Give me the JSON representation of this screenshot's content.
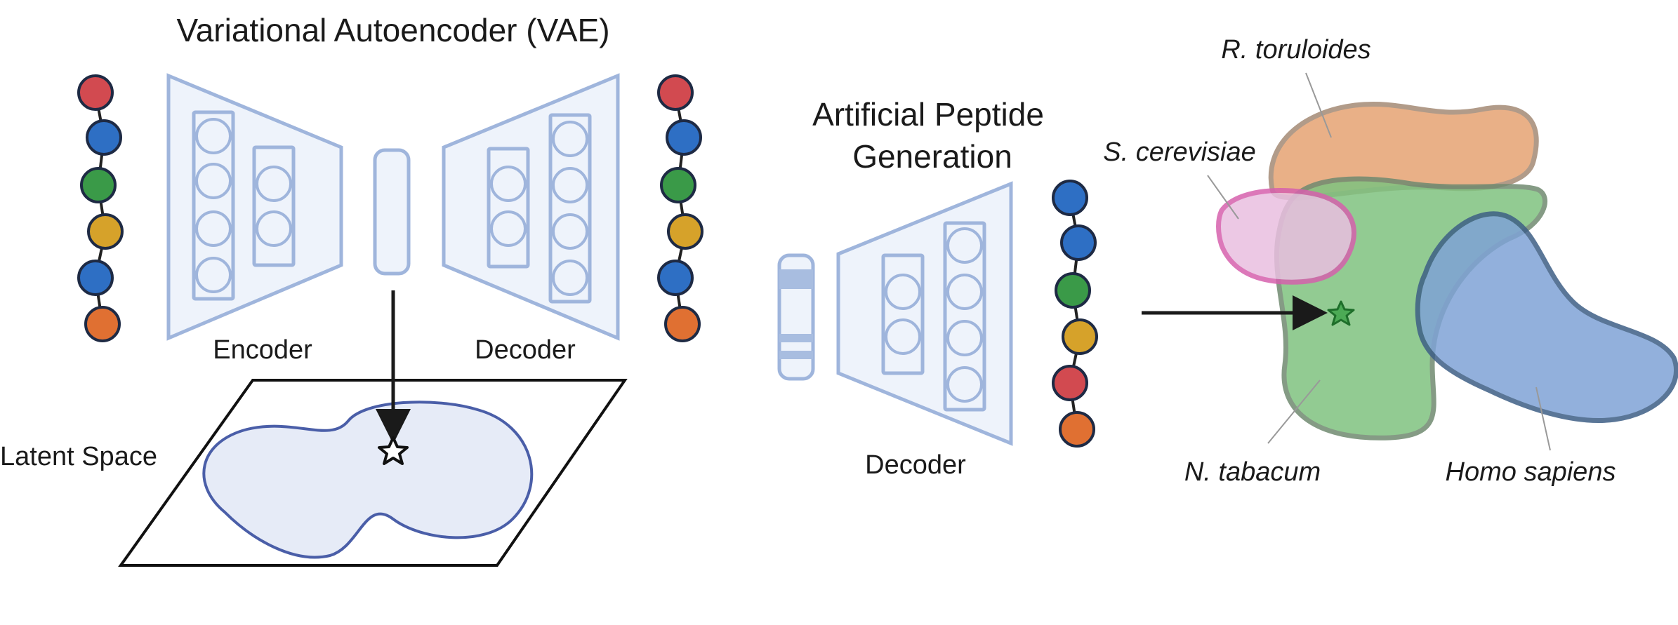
{
  "vae": {
    "title": "Variational Autoencoder (VAE)",
    "encoder_label": "Encoder",
    "decoder_label": "Decoder",
    "latent_label": "Latent Space"
  },
  "generation": {
    "title_line1": "Artificial Peptide",
    "title_line2": "Generation",
    "decoder_label": "Decoder"
  },
  "species": {
    "r_toruloides": "R. toruloides",
    "s_cerevisiae": "S. cerevisiae",
    "n_tabacum": "N. tabacum",
    "homo_sapiens": "Homo sapiens"
  },
  "colors": {
    "network_stroke": "#9fb5dc",
    "network_fill": "#eef3fb",
    "latent_fill": "#e6ebf7",
    "latent_stroke": "#4a5ea8",
    "bead_red": "#d24a50",
    "bead_blue": "#2e6fc4",
    "bead_green": "#3a9a48",
    "bead_yellow": "#d6a22a",
    "bead_orange": "#e07032",
    "r_toruloides": "#e6a373",
    "s_cerevisiae": "#e9bfe0",
    "n_tabacum": "#7fc27f",
    "homo_sapiens": "#7fa3d6"
  },
  "peptide_left": [
    "bead_red",
    "bead_blue",
    "bead_green",
    "bead_yellow",
    "bead_blue",
    "bead_orange"
  ],
  "peptide_right_top": [
    "bead_red",
    "bead_blue",
    "bead_green",
    "bead_yellow",
    "bead_blue",
    "bead_orange"
  ],
  "peptide_generated": [
    "bead_blue",
    "bead_blue",
    "bead_green",
    "bead_yellow",
    "bead_red",
    "bead_orange"
  ]
}
